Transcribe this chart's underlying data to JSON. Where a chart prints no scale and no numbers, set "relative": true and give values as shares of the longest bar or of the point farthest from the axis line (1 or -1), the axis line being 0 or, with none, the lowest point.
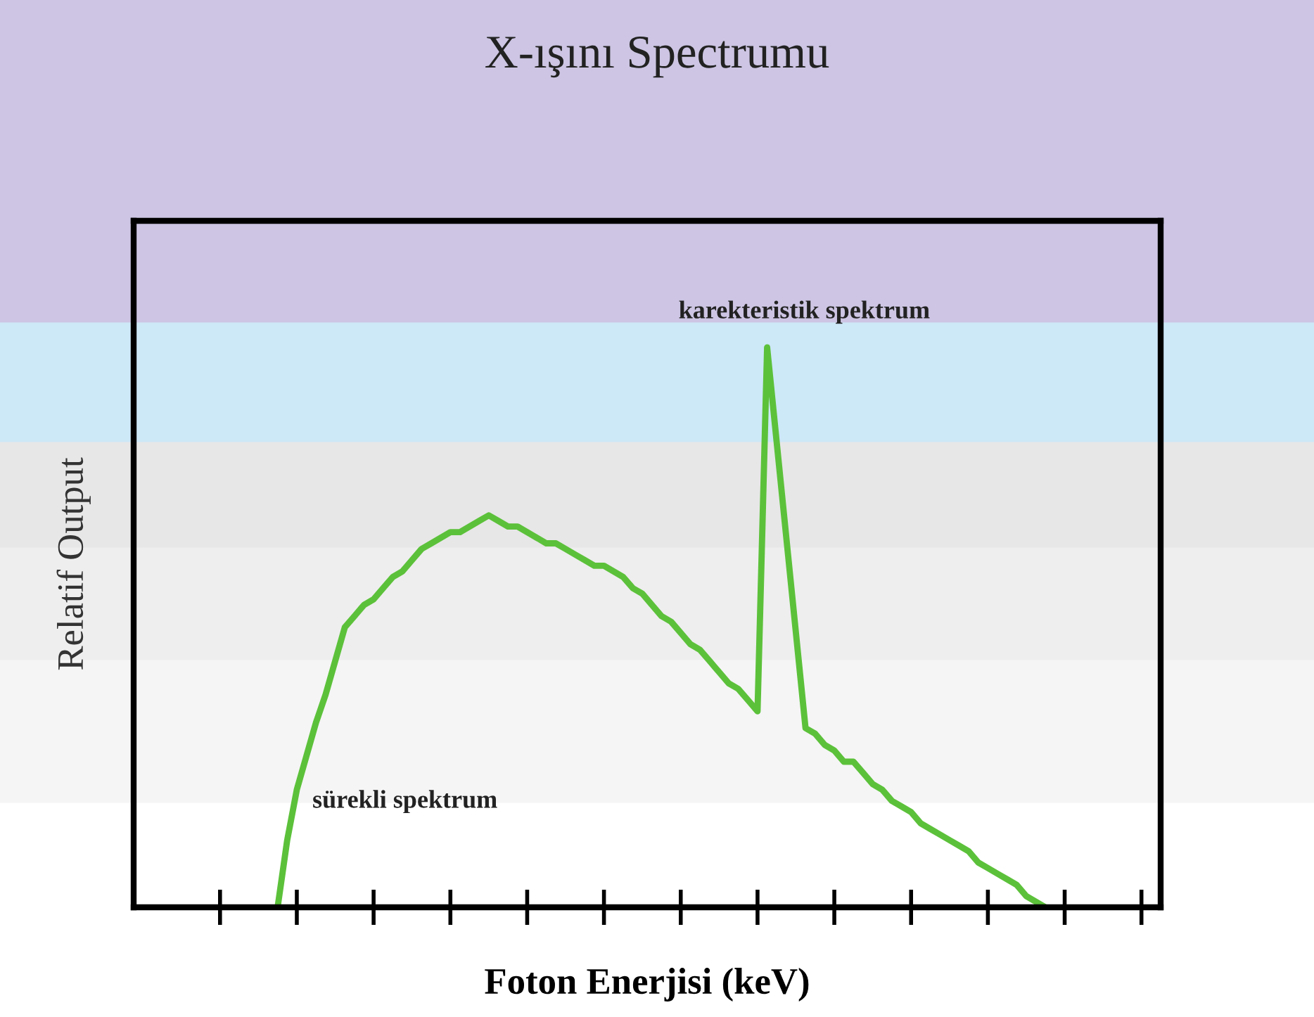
{
  "chart_data": {
    "type": "line",
    "title": "X-ışını Spectrumu",
    "xlabel": "Foton Enerjisi (keV)",
    "ylabel": "Relatif Output",
    "relative": true,
    "categories": [
      null,
      null,
      null,
      null,
      null,
      null,
      null,
      null,
      null,
      null,
      null,
      null,
      null,
      null,
      null,
      null,
      null,
      null,
      null,
      null,
      null,
      null,
      null,
      null,
      null,
      null,
      null,
      null,
      null,
      null,
      null,
      null,
      null,
      null,
      null,
      null,
      null,
      null,
      null,
      null,
      null,
      null,
      null,
      null,
      null,
      null,
      null,
      null,
      null,
      null,
      null,
      null,
      null,
      null,
      null,
      null,
      null,
      null,
      null,
      null,
      null,
      null,
      null,
      null,
      null,
      null,
      null,
      null,
      null,
      null,
      null,
      null,
      null,
      null,
      null,
      null,
      null,
      null,
      null,
      null,
      null,
      null,
      null,
      null,
      null,
      null,
      null,
      null,
      null,
      null,
      null,
      null,
      null,
      null,
      null,
      null,
      null,
      null,
      null,
      null,
      null,
      null,
      null,
      null,
      null,
      null,
      null,
      null
    ],
    "tick_labels": false,
    "series": [
      {
        "color": "#5cc13a",
        "values": [
          null,
          null,
          null,
          null,
          null,
          null,
          null,
          null,
          null,
          null,
          null,
          null,
          null,
          null,
          null,
          0,
          0.12,
          0.21,
          0.27,
          0.33,
          0.38,
          0.44,
          0.5,
          0.52,
          0.54,
          0.55,
          0.57,
          0.59,
          0.6,
          0.62,
          0.64,
          0.65,
          0.66,
          0.67,
          0.67,
          0.68,
          0.69,
          0.7,
          0.69,
          0.68,
          0.68,
          0.67,
          0.66,
          0.65,
          0.65,
          0.64,
          0.63,
          0.62,
          0.61,
          0.61,
          0.6,
          0.59,
          0.57,
          0.56,
          0.54,
          0.52,
          0.51,
          0.49,
          0.47,
          0.46,
          0.44,
          0.42,
          0.4,
          0.39,
          0.37,
          0.35,
          1,
          0.83,
          0.66,
          0.49,
          0.32,
          0.31,
          0.29,
          0.28,
          0.26,
          0.26,
          0.24,
          0.22,
          0.21,
          0.19,
          0.18,
          0.17,
          0.15,
          0.14,
          0.13,
          0.12,
          0.11,
          0.1,
          0.08,
          0.07,
          0.06,
          0.05,
          0.04,
          0.02,
          0.01,
          0,
          null,
          null,
          null,
          null,
          null,
          null,
          null,
          null,
          null,
          null,
          null,
          null
        ]
      }
    ],
    "annotations": [
      "karekteristik spektrum",
      "sürekli spektrum"
    ],
    "grid": false,
    "legend": false,
    "marker": "none",
    "line_style": "solid"
  }
}
